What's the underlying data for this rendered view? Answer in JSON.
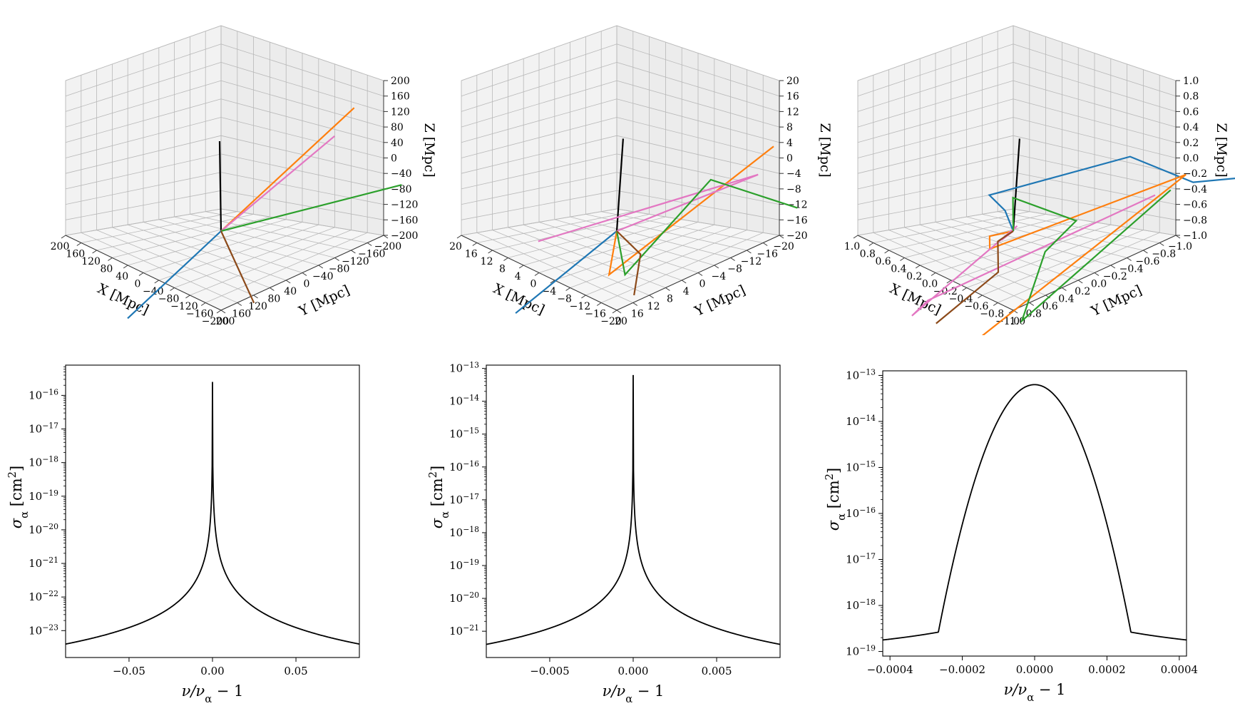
{
  "chart_data": [
    {
      "type": "line3d",
      "panel": "top-left",
      "xlabel": "X [Mpc]",
      "ylabel": "Y [Mpc]",
      "zlabel": "Z [Mpc]",
      "xlim": [
        -200,
        200
      ],
      "ylim": [
        -200,
        200
      ],
      "zlim": [
        -200,
        200
      ],
      "xticks": [
        200,
        160,
        120,
        80,
        40,
        0,
        -40,
        -80,
        -120,
        -160,
        -200
      ],
      "yticks": [
        200,
        160,
        120,
        80,
        40,
        0,
        -40,
        -80,
        -120,
        -160,
        -200
      ],
      "zticks": [
        200,
        160,
        120,
        80,
        40,
        0,
        -40,
        -80,
        -120,
        -160,
        -200
      ],
      "grid": true,
      "series": [
        {
          "color": "#000000",
          "points": [
            [
              0,
              0,
              0
            ],
            [
              -200,
              200,
              100
            ]
          ]
        },
        {
          "color": "#1f77b4",
          "points": [
            [
              0,
              0,
              0
            ],
            [
              220,
              20,
              -160
            ]
          ]
        },
        {
          "color": "#ff7f0e",
          "points": [
            [
              0,
              0,
              0
            ],
            [
              -200,
              -140,
              300
            ]
          ]
        },
        {
          "color": "#e377c2",
          "points": [
            [
              0,
              0,
              0
            ],
            [
              -170,
              -120,
              230
            ]
          ]
        },
        {
          "color": "#2ca02c",
          "points": [
            [
              0,
              0,
              0
            ],
            [
              -200,
              -260,
              140
            ]
          ]
        },
        {
          "color": "#8c4a1a",
          "points": [
            [
              0,
              0,
              0
            ],
            [
              180,
              -260,
              -40
            ]
          ]
        }
      ]
    },
    {
      "type": "line3d",
      "panel": "top-middle",
      "xlabel": "X [Mpc]",
      "ylabel": "Y [Mpc]",
      "zlabel": "Z [Mpc]",
      "xlim": [
        -20,
        20
      ],
      "ylim": [
        -20,
        20
      ],
      "zlim": [
        -20,
        20
      ],
      "xticks": [
        20,
        16,
        12,
        8,
        4,
        0,
        -4,
        -8,
        -12,
        -16,
        -20
      ],
      "yticks": [
        20,
        16,
        12,
        8,
        4,
        0,
        -4,
        -8,
        -12,
        -16,
        -20
      ],
      "zticks": [
        20,
        16,
        12,
        8,
        4,
        0,
        -4,
        -8,
        -12,
        -16,
        -20
      ],
      "grid": true,
      "series": [
        {
          "color": "#000000",
          "points": [
            [
              0,
              0,
              0
            ],
            [
              -22,
              20,
              10
            ]
          ]
        },
        {
          "color": "#1f77b4",
          "points": [
            [
              0,
              0,
              0
            ],
            [
              24,
              2,
              -14
            ]
          ]
        },
        {
          "color": "#ff7f0e",
          "points": [
            [
              0,
              0,
              0
            ],
            [
              3,
              -1,
              -10
            ],
            [
              -20,
              -20,
              22
            ]
          ]
        },
        {
          "color": "#e377c2",
          "points": [
            [
              0,
              0,
              0
            ],
            [
              -16,
              -20,
              16
            ],
            [
              8,
              12,
              -4
            ]
          ]
        },
        {
          "color": "#2ca02c",
          "points": [
            [
              0,
              0,
              0
            ],
            [
              4,
              -6,
              -8
            ],
            [
              -14,
              -10,
              12
            ],
            [
              -20,
              -26,
              8
            ]
          ]
        },
        {
          "color": "#8c4a1a",
          "points": [
            [
              0,
              0,
              0
            ],
            [
              0,
              -6,
              -4
            ],
            [
              20,
              -24,
              -2
            ]
          ]
        }
      ]
    },
    {
      "type": "line3d",
      "panel": "top-right",
      "xlabel": "X [Mpc]",
      "ylabel": "Y [Mpc]",
      "zlabel": "Z [Mpc]",
      "xlim": [
        -1.0,
        1.0
      ],
      "ylim": [
        -1.0,
        1.0
      ],
      "zlim": [
        -1.0,
        1.0
      ],
      "xticks": [
        "1.0",
        "0.8",
        "0.6",
        "0.4",
        "0.2",
        "0.0",
        "−0.2",
        "−0.4",
        "−0.6",
        "−0.8",
        "−1.0"
      ],
      "yticks": [
        "1.0",
        "0.8",
        "0.6",
        "0.4",
        "0.2",
        "0.0",
        "−0.2",
        "−0.4",
        "−0.6",
        "−0.8",
        "−1.0"
      ],
      "zticks": [
        "1.0",
        "0.8",
        "0.6",
        "0.4",
        "0.2",
        "0.0",
        "−0.2",
        "−0.4",
        "−0.6",
        "−0.8",
        "−1.0"
      ],
      "grid": true,
      "series": [
        {
          "color": "#000000",
          "points": [
            [
              0,
              0,
              0
            ],
            [
              -1.1,
              1.0,
              0.5
            ]
          ]
        },
        {
          "color": "#1f77b4",
          "points": [
            [
              0,
              0,
              0
            ],
            [
              -0.2,
              0.3,
              0.1
            ],
            [
              -0.1,
              0.4,
              0.3
            ],
            [
              -1.3,
              -0.2,
              0.6
            ],
            [
              -1.5,
              -0.8,
              0.4
            ],
            [
              -1.8,
              -1.2,
              0.5
            ]
          ]
        },
        {
          "color": "#ff7f0e",
          "points": [
            [
              0,
              0,
              0
            ],
            [
              0.1,
              0.2,
              -0.1
            ],
            [
              0.2,
              0.1,
              -0.2
            ],
            [
              -1.0,
              -1.2,
              0.8
            ],
            [
              1.2,
              0.0,
              -1.6
            ]
          ]
        },
        {
          "color": "#e377c2",
          "points": [
            [
              0,
              0,
              0
            ],
            [
              0.1,
              0.05,
              -0.1
            ],
            [
              -0.05,
              0.0,
              0.05
            ],
            [
              1.1,
              0.2,
              -0.8
            ],
            [
              1.3,
              -0.2,
              -0.4
            ],
            [
              -0.4,
              -1.4,
              0.8
            ]
          ]
        },
        {
          "color": "#2ca02c",
          "points": [
            [
              0,
              0,
              0
            ],
            [
              -0.2,
              0.2,
              0.3
            ],
            [
              -0.3,
              -0.5,
              0.2
            ],
            [
              0.2,
              -0.6,
              0.0
            ],
            [
              0.5,
              -0.6,
              -0.8
            ],
            [
              -0.6,
              -1.4,
              0.8
            ]
          ]
        },
        {
          "color": "#8c4a1a",
          "points": [
            [
              0,
              0,
              0
            ],
            [
              0.3,
              -0.1,
              0.0
            ],
            [
              0.6,
              -0.4,
              -0.2
            ],
            [
              1.4,
              -0.4,
              -0.6
            ]
          ]
        }
      ]
    },
    {
      "type": "line",
      "panel": "bottom-left",
      "xlabel": "ν/ν_α − 1",
      "ylabel": "σ_α [cm²]",
      "yscale": "log",
      "xlim": [
        -0.088,
        0.088
      ],
      "ylim_log10": [
        -23.8,
        -15.1
      ],
      "xticks": [
        {
          "v": -0.05,
          "label": "−0.05"
        },
        {
          "v": 0,
          "label": "0.00"
        },
        {
          "v": 0.05,
          "label": "0.05"
        }
      ],
      "yticks": [
        {
          "e": -23,
          "label": "−23"
        },
        {
          "e": -22,
          "label": "−22"
        },
        {
          "e": -21,
          "label": "−21"
        },
        {
          "e": -20,
          "label": "−20"
        },
        {
          "e": -19,
          "label": "−19"
        },
        {
          "e": -18,
          "label": "−18"
        },
        {
          "e": -17,
          "label": "−17"
        },
        {
          "e": -16,
          "label": "−16"
        }
      ],
      "peak_log10": -15.6,
      "wing_at_edge_log10": -23.4,
      "core_halfwidth": 0.0
    },
    {
      "type": "line",
      "panel": "bottom-middle",
      "xlabel": "ν/ν_α − 1",
      "ylabel": "σ_α [cm²]",
      "yscale": "log",
      "xlim": [
        -0.0088,
        0.0088
      ],
      "ylim_log10": [
        -21.8,
        -12.9
      ],
      "xticks": [
        {
          "v": -0.005,
          "label": "−0.005"
        },
        {
          "v": 0,
          "label": "0.000"
        },
        {
          "v": 0.005,
          "label": "0.005"
        }
      ],
      "yticks": [
        {
          "e": -21,
          "label": "−21"
        },
        {
          "e": -20,
          "label": "−20"
        },
        {
          "e": -19,
          "label": "−19"
        },
        {
          "e": -18,
          "label": "−18"
        },
        {
          "e": -17,
          "label": "−17"
        },
        {
          "e": -16,
          "label": "−16"
        },
        {
          "e": -15,
          "label": "−15"
        },
        {
          "e": -14,
          "label": "−14"
        },
        {
          "e": -13,
          "label": "−13"
        }
      ],
      "peak_log10": -13.2,
      "wing_at_edge_log10": -21.4,
      "core_halfwidth": 0.0
    },
    {
      "type": "line",
      "panel": "bottom-right",
      "xlabel": "ν/ν_α − 1",
      "ylabel": "σ_α [cm²]",
      "yscale": "log",
      "xlim": [
        -0.00042,
        0.00042
      ],
      "ylim_log10": [
        -19.1,
        -12.9
      ],
      "xticks": [
        {
          "v": -0.0004,
          "label": "−0.0004"
        },
        {
          "v": -0.0002,
          "label": "−0.0002"
        },
        {
          "v": 0,
          "label": "0.0000"
        },
        {
          "v": 0.0002,
          "label": "0.0002"
        },
        {
          "v": 0.0004,
          "label": "0.0004"
        }
      ],
      "yticks": [
        {
          "e": -19,
          "label": "−19"
        },
        {
          "e": -18,
          "label": "−18"
        },
        {
          "e": -17,
          "label": "−17"
        },
        {
          "e": -16,
          "label": "−16"
        },
        {
          "e": -15,
          "label": "−15"
        },
        {
          "e": -14,
          "label": "−14"
        },
        {
          "e": -13,
          "label": "−13"
        }
      ],
      "peak_log10": -13.2,
      "wing_at_edge_log10": -18.75,
      "core_halfwidth": 0.000115
    }
  ]
}
